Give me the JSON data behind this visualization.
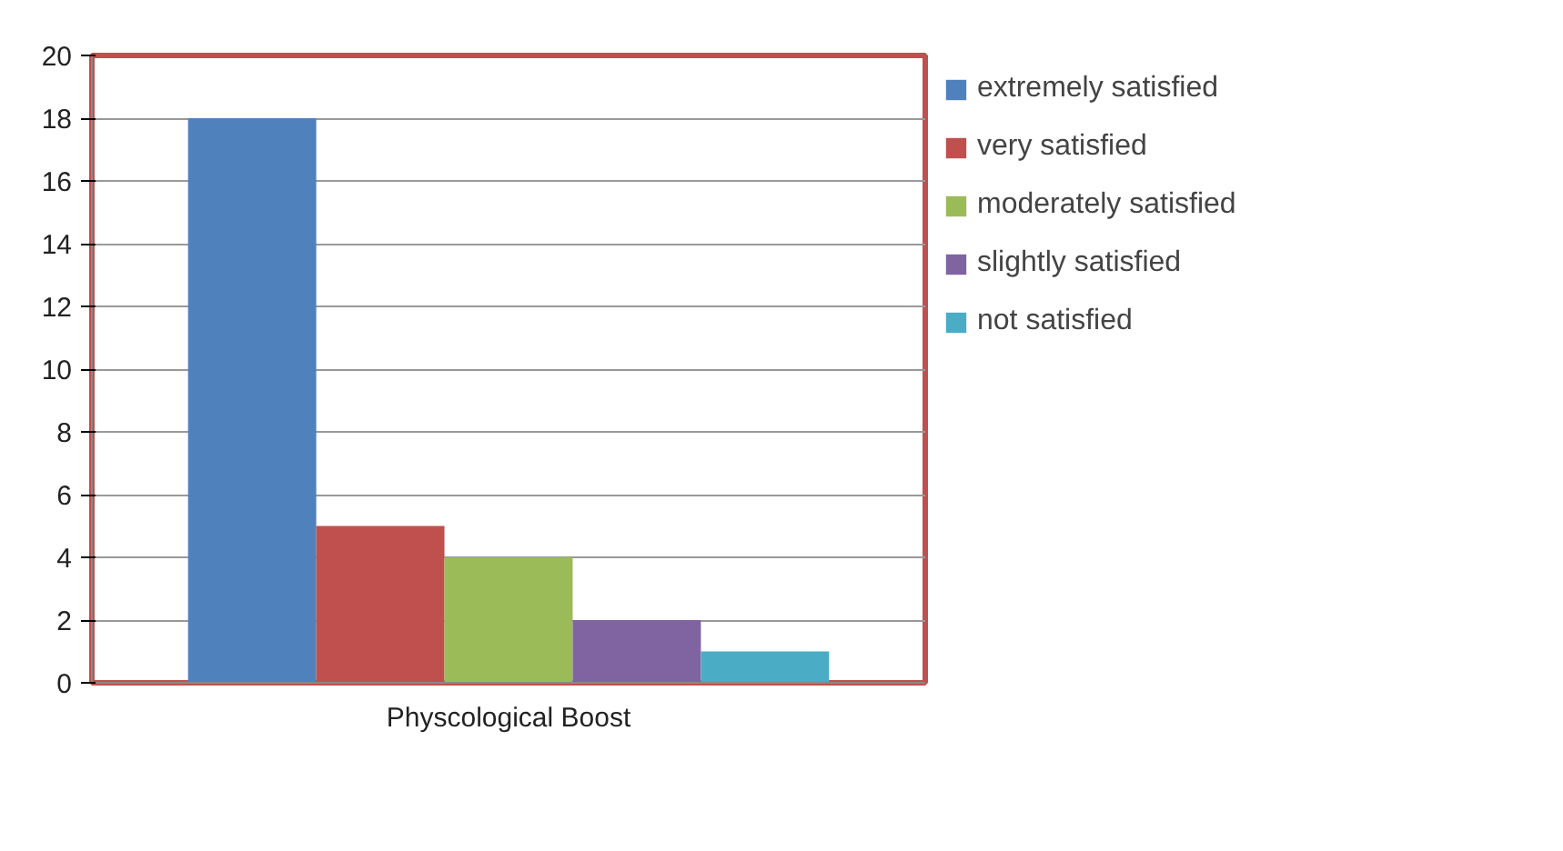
{
  "chart_data": {
    "type": "bar",
    "categories": [
      "Physcological Boost"
    ],
    "series": [
      {
        "name": "extremely satisfied",
        "color": "#4f81bd",
        "values": [
          18
        ]
      },
      {
        "name": "very satisfied",
        "color": "#c0504d",
        "values": [
          5
        ]
      },
      {
        "name": "moderately satisfied",
        "color": "#9bbb59",
        "values": [
          4
        ]
      },
      {
        "name": "slightly satisfied",
        "color": "#8064a2",
        "values": [
          2
        ]
      },
      {
        "name": "not satisfied",
        "color": "#4bacc6",
        "values": [
          1
        ]
      }
    ],
    "ylim": [
      0,
      20
    ],
    "yticks": [
      0,
      2,
      4,
      6,
      8,
      10,
      12,
      14,
      16,
      18,
      20
    ],
    "grid": "y",
    "legend": "right"
  }
}
